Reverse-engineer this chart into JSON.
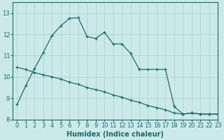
{
  "xlabel": "Humidex (Indice chaleur)",
  "background_color": "#cce9e9",
  "line_color": "#1a6b6b",
  "grid_color": "#aad4d4",
  "curve1_x": [
    0,
    1,
    2,
    3,
    4,
    5,
    6,
    7,
    8,
    9,
    10,
    11,
    12,
    13,
    14,
    15,
    16,
    17,
    18,
    19,
    20,
    21,
    22,
    23
  ],
  "curve1_y": [
    8.7,
    9.6,
    10.4,
    11.15,
    11.95,
    12.4,
    12.75,
    12.78,
    11.9,
    11.8,
    12.1,
    11.55,
    11.55,
    11.1,
    10.35,
    10.35,
    10.35,
    10.35,
    8.6,
    8.25,
    8.3,
    8.25,
    8.25,
    8.25
  ],
  "curve2_x": [
    0,
    1,
    2,
    3,
    4,
    5,
    6,
    7,
    8,
    9,
    10,
    11,
    12,
    13,
    14,
    15,
    16,
    17,
    18,
    19,
    20,
    21,
    22,
    23
  ],
  "curve2_y": [
    10.45,
    10.35,
    10.2,
    10.1,
    10.0,
    9.9,
    9.75,
    9.65,
    9.5,
    9.4,
    9.3,
    9.15,
    9.05,
    8.9,
    8.8,
    8.65,
    8.55,
    8.45,
    8.3,
    8.25,
    8.3,
    8.25,
    8.25,
    8.25
  ],
  "xlim": [
    -0.5,
    23
  ],
  "ylim": [
    8.0,
    13.5
  ],
  "xticks": [
    0,
    1,
    2,
    3,
    4,
    5,
    6,
    7,
    8,
    9,
    10,
    11,
    12,
    13,
    14,
    15,
    16,
    17,
    18,
    19,
    20,
    21,
    22,
    23
  ],
  "yticks": [
    8,
    9,
    10,
    11,
    12,
    13
  ],
  "xlabel_fontsize": 7,
  "tick_fontsize": 6
}
